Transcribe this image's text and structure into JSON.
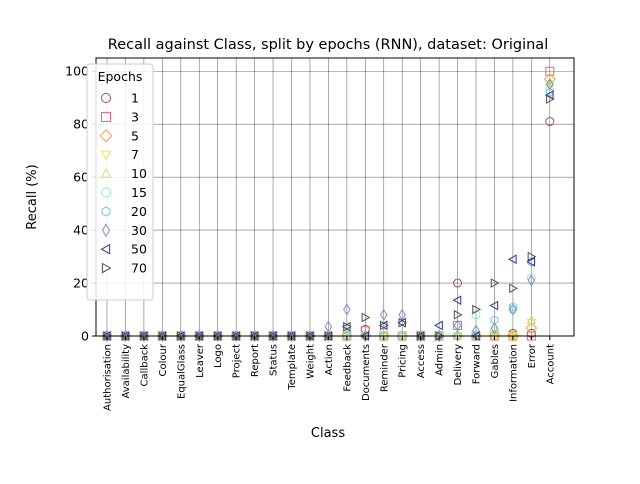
{
  "chart_data": {
    "type": "scatter",
    "title": "Recall against Class, split by epochs (RNN), dataset: Original",
    "xlabel": "Class",
    "ylabel": "Recall (%)",
    "ylim": [
      0,
      105
    ],
    "yticks": [
      0,
      20,
      40,
      60,
      80,
      100
    ],
    "grid": true,
    "legend_title": "Epochs",
    "legend_position": "upper-left",
    "categories": [
      "Authorisation",
      "Availability",
      "Callback",
      "Colour",
      "EqualGlass",
      "Leaver",
      "Logo",
      "Project",
      "Report",
      "Status",
      "Template",
      "Weight",
      "Action",
      "Feedback",
      "Documents",
      "Reminder",
      "Pricing",
      "Access",
      "Admin",
      "Delivery",
      "Forward",
      "Gables",
      "Information",
      "Error",
      "Account"
    ],
    "series": [
      {
        "name": "1",
        "marker": "circle",
        "color": "#a05050",
        "values": [
          0,
          0,
          0,
          0,
          0,
          0,
          0,
          0,
          0,
          0,
          0,
          0,
          0,
          0,
          2.5,
          0,
          0,
          0,
          0,
          20,
          0,
          0,
          1,
          1,
          81
        ]
      },
      {
        "name": "3",
        "marker": "square",
        "color": "#e8677a",
        "values": [
          0,
          0,
          0,
          0,
          0,
          0,
          0,
          0,
          0,
          0,
          0,
          0,
          0,
          0,
          2,
          0,
          0,
          0,
          0,
          4,
          0,
          0,
          0,
          0,
          100
        ]
      },
      {
        "name": "5",
        "marker": "diamond",
        "color": "#f0a050",
        "values": [
          0,
          0,
          0,
          0,
          0,
          0,
          0,
          0,
          0,
          0,
          0,
          0,
          0,
          0,
          0,
          0,
          0,
          0,
          0,
          0,
          0,
          0,
          0,
          3,
          97
        ]
      },
      {
        "name": "7",
        "marker": "triangle-down",
        "color": "#f0e040",
        "values": [
          0,
          0,
          0,
          0,
          0,
          0,
          0,
          0,
          0,
          0,
          0,
          0,
          0,
          0,
          0,
          0,
          0,
          0,
          0,
          0,
          0,
          0,
          0,
          5,
          95
        ]
      },
      {
        "name": "10",
        "marker": "triangle-up",
        "color": "#c8e070",
        "values": [
          0,
          0,
          0,
          0,
          0,
          0,
          0,
          0,
          0,
          0,
          0,
          0,
          0,
          0,
          0,
          0,
          0,
          0,
          0,
          0,
          0,
          0,
          0,
          6,
          96
        ]
      },
      {
        "name": "15",
        "marker": "circle",
        "color": "#90ecc0",
        "values": [
          0,
          0,
          0,
          0,
          0,
          0,
          0,
          0,
          0,
          0,
          0,
          0,
          0,
          0,
          0,
          0,
          0,
          0,
          0,
          0,
          8,
          2,
          10,
          22,
          93
        ]
      },
      {
        "name": "20",
        "marker": "hexagon",
        "color": "#70c8e8",
        "values": [
          0,
          0,
          0,
          0,
          0,
          0,
          0,
          0,
          0,
          0,
          0,
          0,
          0,
          0,
          0,
          0,
          0,
          0,
          0,
          0,
          0,
          6,
          11,
          28,
          92
        ]
      },
      {
        "name": "30",
        "marker": "thin-diamond",
        "color": "#8090d0",
        "values": [
          0,
          0,
          0,
          0,
          0,
          0,
          0,
          0,
          0,
          0,
          0,
          0,
          3.5,
          10,
          0,
          8,
          8,
          0,
          0,
          4,
          2,
          3,
          10,
          21,
          95
        ]
      },
      {
        "name": "50",
        "marker": "triangle-left",
        "color": "#303890",
        "values": [
          0,
          0,
          0,
          0,
          0,
          0,
          0,
          0,
          0,
          0,
          0,
          0,
          0,
          3.5,
          0,
          4,
          5,
          0,
          4,
          13.5,
          0,
          11.5,
          29,
          28,
          91
        ]
      },
      {
        "name": "70",
        "marker": "triangle-right",
        "color": "#505050",
        "values": [
          0,
          0,
          0,
          0,
          0,
          0,
          0,
          0,
          0,
          0,
          0,
          0,
          0,
          3.5,
          7,
          4,
          5,
          0,
          0,
          8,
          10,
          20,
          18,
          30,
          89.5
        ]
      }
    ]
  }
}
